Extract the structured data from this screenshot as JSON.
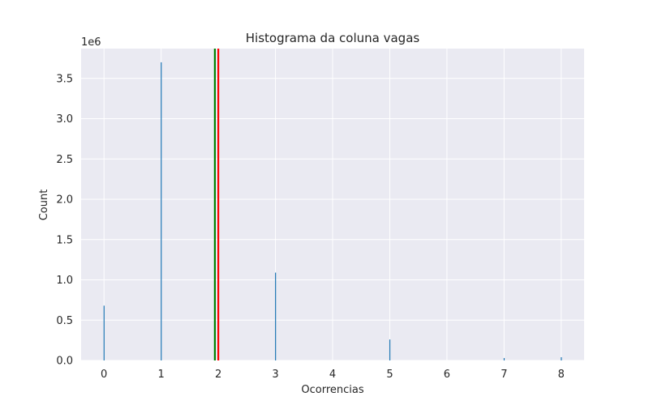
{
  "chart_data": {
    "type": "bar",
    "title": "Histograma da coluna vagas",
    "xlabel": "Ocorrencias",
    "ylabel": "Count",
    "y_offset_label": "1e6",
    "xlim": [
      -0.4,
      8.4
    ],
    "ylim": [
      0,
      3.87
    ],
    "x_ticks": [
      0,
      1,
      2,
      3,
      4,
      5,
      6,
      7,
      8
    ],
    "x_tick_labels": [
      "0",
      "1",
      "2",
      "3",
      "4",
      "5",
      "6",
      "7",
      "8"
    ],
    "y_ticks": [
      0,
      0.5,
      1.0,
      1.5,
      2.0,
      2.5,
      3.0,
      3.5
    ],
    "y_tick_labels": [
      "0.0",
      "0.5",
      "1.0",
      "1.5",
      "2.0",
      "2.5",
      "3.0",
      "3.5"
    ],
    "x": [
      0,
      1,
      3,
      5,
      7,
      8
    ],
    "values": [
      0.68,
      3.7,
      1.09,
      0.26,
      0.03,
      0.04
    ],
    "vertical_lines": [
      {
        "x": 1.94,
        "color": "#008000"
      },
      {
        "x": 2.0,
        "color": "#ff0000"
      }
    ],
    "grid": true,
    "bar_color": "#1f77b4",
    "background_color": "#eaeaf2"
  }
}
